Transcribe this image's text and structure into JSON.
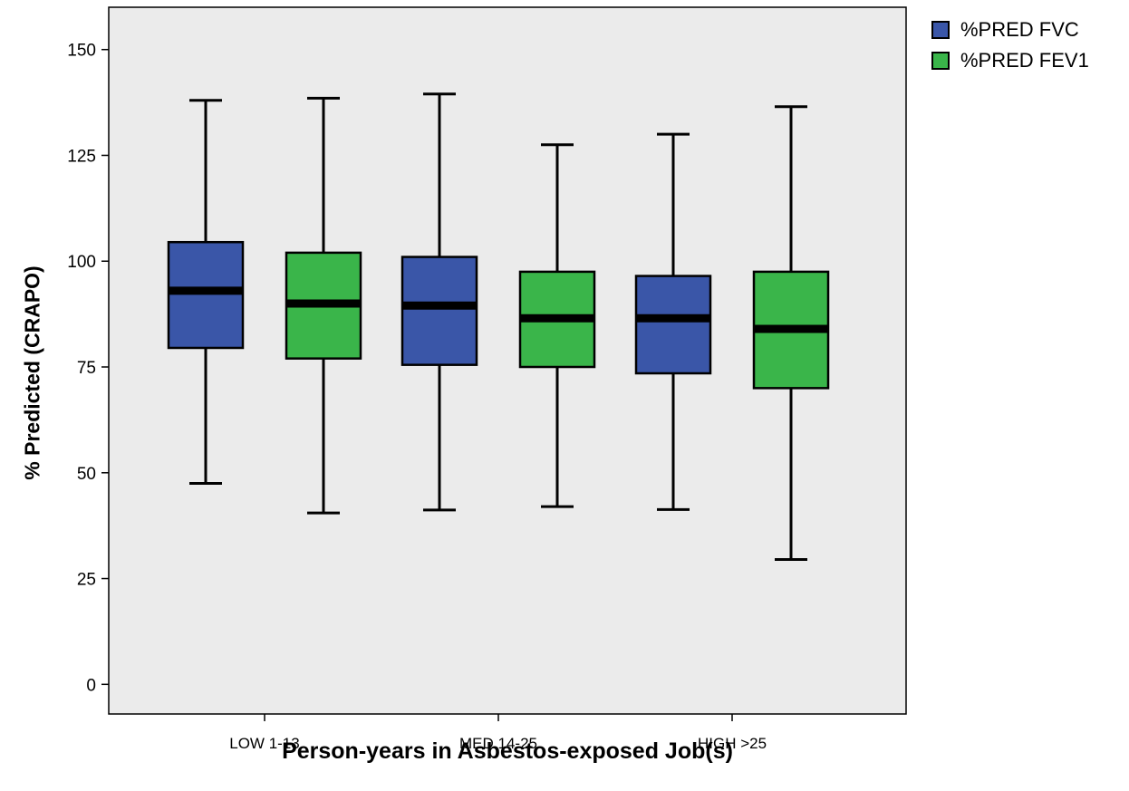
{
  "chart_data": {
    "type": "boxplot",
    "xlabel": "Person-years in Asbestos-exposed Job(s)",
    "ylabel": "% Predicted (CRAPO)",
    "ylim": [
      -7,
      160
    ],
    "yticks": [
      0,
      25,
      50,
      75,
      100,
      125,
      150
    ],
    "grid": false,
    "legend_position": "top-right outside",
    "categories": [
      "LOW 1-13",
      "MED 14-25",
      "HIGH >25"
    ],
    "series": [
      {
        "name": "%PRED FVC",
        "color": "#3a56a8",
        "boxes": [
          {
            "min": 47.5,
            "q1": 79.5,
            "median": 93,
            "q3": 104.5,
            "max": 138
          },
          {
            "min": 41.2,
            "q1": 75.5,
            "median": 89.5,
            "q3": 101,
            "max": 139.5
          },
          {
            "min": 41.3,
            "q1": 73.5,
            "median": 86.5,
            "q3": 96.5,
            "max": 130
          }
        ]
      },
      {
        "name": "%PRED FEV1",
        "color": "#3ab54a",
        "boxes": [
          {
            "min": 40.5,
            "q1": 77,
            "median": 90,
            "q3": 102,
            "max": 138.5
          },
          {
            "min": 42,
            "q1": 75,
            "median": 86.5,
            "q3": 97.5,
            "max": 127.5
          },
          {
            "min": 29.5,
            "q1": 70,
            "median": 84,
            "q3": 97.5,
            "max": 136.5
          }
        ]
      }
    ]
  }
}
